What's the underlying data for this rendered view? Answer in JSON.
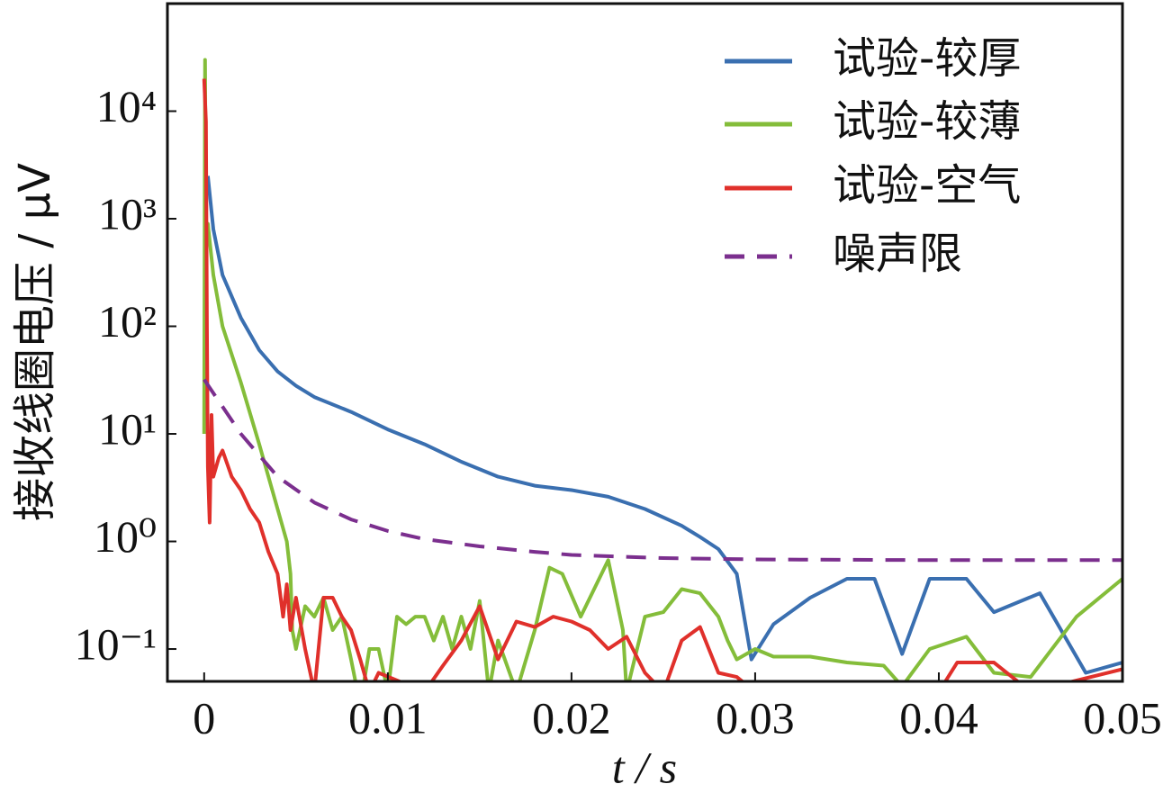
{
  "chart_data": {
    "type": "line",
    "xlabel": "t / s",
    "ylabel": "接收线圈电压 / μV",
    "xlim": [
      -0.002,
      0.05
    ],
    "xticks": [
      0,
      0.01,
      0.02,
      0.03,
      0.04,
      0.05
    ],
    "ylim": [
      0.05,
      100000
    ],
    "yscale": "log",
    "yticks": [
      {
        "value": 0.1,
        "label": "10⁻¹"
      },
      {
        "value": 1,
        "label": "10⁰"
      },
      {
        "value": 10,
        "label": "10¹"
      },
      {
        "value": 100,
        "label": "10²"
      },
      {
        "value": 1000,
        "label": "10³"
      },
      {
        "value": 10000,
        "label": "10⁴"
      }
    ],
    "legend": "upper right",
    "series": [
      {
        "name": "试验-较厚",
        "color": "#3a6fb0",
        "linestyle": "solid",
        "x": [
          0.0002,
          0.0005,
          0.001,
          0.002,
          0.003,
          0.004,
          0.005,
          0.006,
          0.008,
          0.01,
          0.012,
          0.014,
          0.016,
          0.018,
          0.02,
          0.022,
          0.024,
          0.026,
          0.027,
          0.028,
          0.029,
          0.0298,
          0.031,
          0.033,
          0.035,
          0.0365,
          0.038,
          0.0395,
          0.0415,
          0.043,
          0.0455,
          0.048,
          0.05
        ],
        "values": [
          2500,
          800,
          300,
          120,
          60,
          38,
          28,
          22,
          16,
          11,
          8,
          5.5,
          4,
          3.3,
          3,
          2.6,
          2,
          1.4,
          1.1,
          0.85,
          0.5,
          0.08,
          0.17,
          0.3,
          0.45,
          0.45,
          0.09,
          0.45,
          0.45,
          0.22,
          0.33,
          0.06,
          0.075
        ]
      },
      {
        "name": "试验-较薄",
        "color": "#84bd3a",
        "linestyle": "solid",
        "x": [
          0,
          5e-05,
          0.0001,
          0.0002,
          0.0005,
          0.001,
          0.002,
          0.003,
          0.004,
          0.0045,
          0.0047,
          0.0048,
          0.005,
          0.0055,
          0.006,
          0.0065,
          0.007,
          0.0075,
          0.008,
          0.0085,
          0.009,
          0.0095,
          0.01,
          0.0105,
          0.011,
          0.0115,
          0.012,
          0.0125,
          0.013,
          0.0135,
          0.014,
          0.0145,
          0.015,
          0.0155,
          0.016,
          0.017,
          0.018,
          0.0188,
          0.0195,
          0.0205,
          0.022,
          0.0228,
          0.023,
          0.024,
          0.025,
          0.026,
          0.027,
          0.028,
          0.0285,
          0.029,
          0.03,
          0.031,
          0.033,
          0.035,
          0.037,
          0.038,
          0.0395,
          0.0415,
          0.043,
          0.045,
          0.0475,
          0.05
        ],
        "values": [
          10,
          30000,
          800,
          900,
          300,
          100,
          30,
          8,
          2,
          1,
          0.5,
          0.15,
          0.1,
          0.25,
          0.2,
          0.3,
          0.15,
          0.2,
          0.08,
          0.03,
          0.1,
          0.1,
          0.04,
          0.2,
          0.17,
          0.2,
          0.2,
          0.12,
          0.2,
          0.1,
          0.2,
          0.1,
          0.28,
          0.04,
          0.12,
          0.04,
          0.15,
          0.57,
          0.5,
          0.2,
          0.67,
          0.15,
          0.04,
          0.2,
          0.22,
          0.36,
          0.33,
          0.2,
          0.12,
          0.08,
          0.1,
          0.085,
          0.085,
          0.075,
          0.07,
          0.045,
          0.1,
          0.13,
          0.06,
          0.055,
          0.2,
          0.45
        ]
      },
      {
        "name": "试验-空气",
        "color": "#e0302b",
        "linestyle": "solid",
        "x": [
          0,
          0.0001,
          0.00015,
          0.0002,
          0.0003,
          0.0004,
          0.0005,
          0.0008,
          0.001,
          0.0015,
          0.002,
          0.0025,
          0.003,
          0.0035,
          0.004,
          0.0043,
          0.0045,
          0.0047,
          0.005,
          0.0055,
          0.006,
          0.0065,
          0.007,
          0.0075,
          0.008,
          0.0085,
          0.009,
          0.0095,
          0.012,
          0.013,
          0.014,
          0.015,
          0.016,
          0.017,
          0.018,
          0.019,
          0.02,
          0.021,
          0.022,
          0.023,
          0.024,
          0.025,
          0.026,
          0.027,
          0.028,
          0.029,
          0.03,
          0.04,
          0.041,
          0.043,
          0.045,
          0.05
        ],
        "values": [
          20000,
          8000,
          100,
          5,
          1.5,
          15,
          4,
          6,
          7,
          4,
          3,
          2,
          1.5,
          0.8,
          0.5,
          0.2,
          0.4,
          0.15,
          0.3,
          0.1,
          0.04,
          0.3,
          0.3,
          0.2,
          0.15,
          0.08,
          0.04,
          0.06,
          0.04,
          0.07,
          0.12,
          0.25,
          0.08,
          0.18,
          0.16,
          0.2,
          0.18,
          0.15,
          0.1,
          0.13,
          0.06,
          0.04,
          0.12,
          0.16,
          0.06,
          0.055,
          0.04,
          0.04,
          0.075,
          0.075,
          0.04,
          0.065
        ]
      },
      {
        "name": "噪声限",
        "color": "#7b2f8e",
        "linestyle": "dashed",
        "x": [
          0,
          0.002,
          0.004,
          0.006,
          0.008,
          0.01,
          0.012,
          0.015,
          0.018,
          0.02,
          0.025,
          0.03,
          0.04,
          0.05
        ],
        "values": [
          32,
          10,
          4,
          2.3,
          1.6,
          1.25,
          1.05,
          0.9,
          0.8,
          0.75,
          0.7,
          0.68,
          0.67,
          0.67
        ]
      }
    ]
  }
}
